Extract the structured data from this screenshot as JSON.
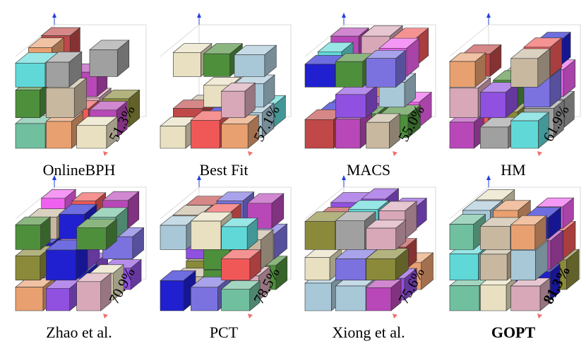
{
  "panels": [
    {
      "name": "OnlineBPH",
      "utilization": "51.3%"
    },
    {
      "name": "Best Fit",
      "utilization": "57.1%"
    },
    {
      "name": "MACS",
      "utilization": "55.0%"
    },
    {
      "name": "HM",
      "utilization": "61.9%"
    },
    {
      "name": "Zhao et al.",
      "utilization": "70.9%"
    },
    {
      "name": "PCT",
      "utilization": "78.5%"
    },
    {
      "name": "Xiong et al.",
      "utilization": "75.6%"
    },
    {
      "name": "GOPT",
      "utilization": "81.3%"
    }
  ]
}
